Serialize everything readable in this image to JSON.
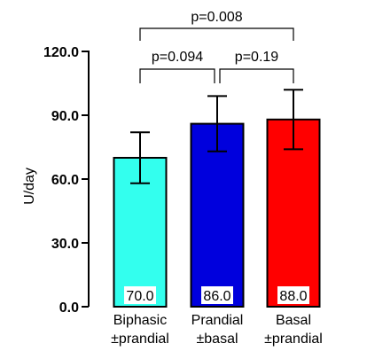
{
  "chart_data": {
    "type": "bar",
    "ylabel": "U/day",
    "ylim": [
      0,
      120
    ],
    "yticks": [
      "0.0",
      "30.0",
      "60.0",
      "90.0",
      "120.0"
    ],
    "grid": false,
    "categories": [
      {
        "line1": "Biphasic",
        "line2": "±prandial"
      },
      {
        "line1": "Prandial",
        "line2": "±basal"
      },
      {
        "line1": "Basal",
        "line2": "±prandial"
      }
    ],
    "values": [
      70.0,
      86.0,
      88.0
    ],
    "value_labels": [
      "70.0",
      "86.0",
      "88.0"
    ],
    "error_bars": [
      {
        "low": 58,
        "high": 82
      },
      {
        "low": 73,
        "high": 99
      },
      {
        "low": 74,
        "high": 102
      }
    ],
    "bar_colors": [
      "#33ffee",
      "#0000dd",
      "#ff0000"
    ],
    "comparisons": [
      {
        "from": 0,
        "to": 1,
        "label": "p=0.094"
      },
      {
        "from": 1,
        "to": 2,
        "label": "p=0.19"
      },
      {
        "from": 0,
        "to": 2,
        "label": "p=0.008"
      }
    ]
  }
}
